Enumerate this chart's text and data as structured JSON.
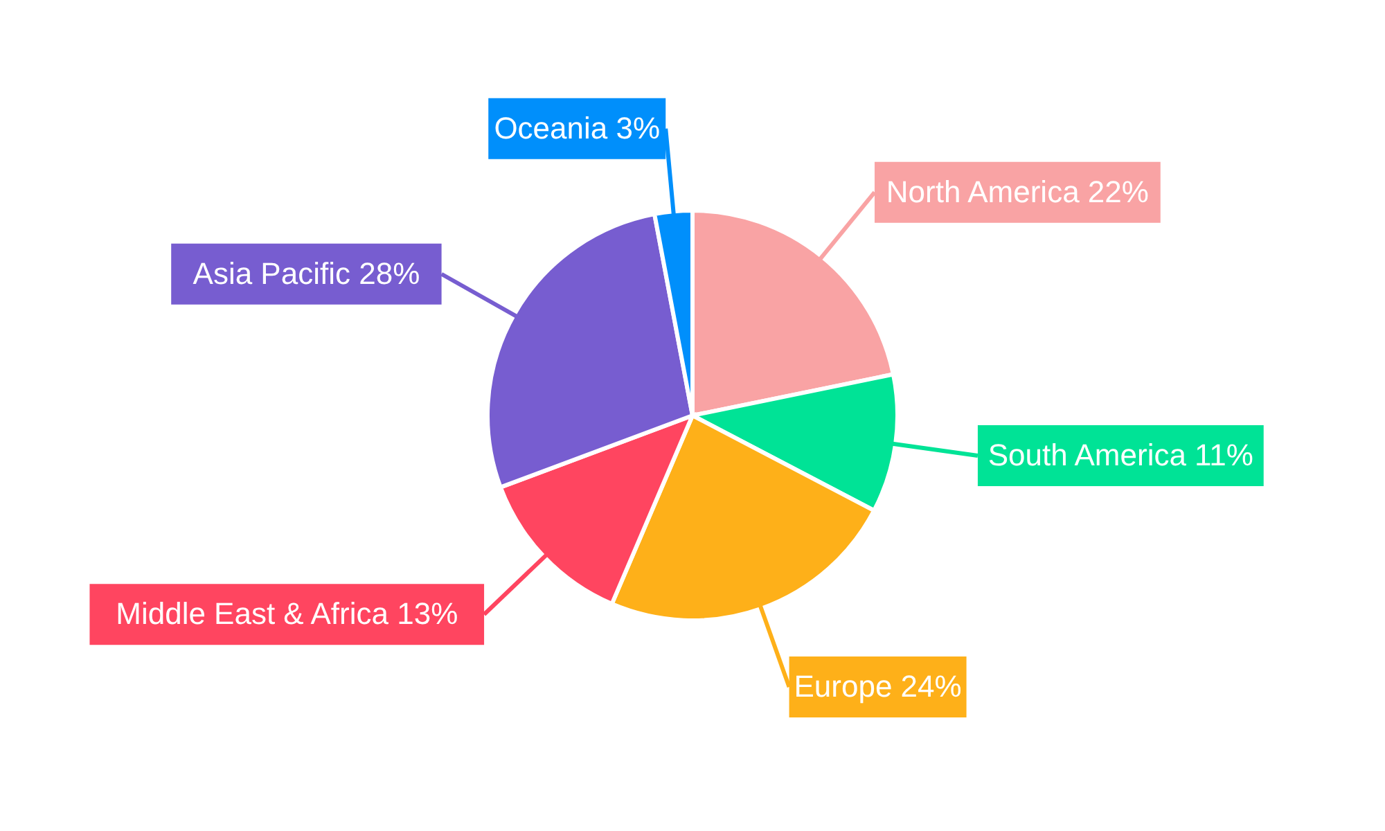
{
  "chart_data": {
    "type": "pie",
    "categories": [
      "North America",
      "South America",
      "Europe",
      "Middle East & Africa",
      "Asia Pacific",
      "Oceania"
    ],
    "values": [
      22,
      11,
      24,
      13,
      28,
      3
    ],
    "value_labels": [
      "22%",
      "11%",
      "24%",
      "13%",
      "28%",
      "3%"
    ],
    "colors": [
      "#f9a3a4",
      "#00e396",
      "#feb019",
      "#ff4560",
      "#775dd0",
      "#008ffb"
    ]
  }
}
